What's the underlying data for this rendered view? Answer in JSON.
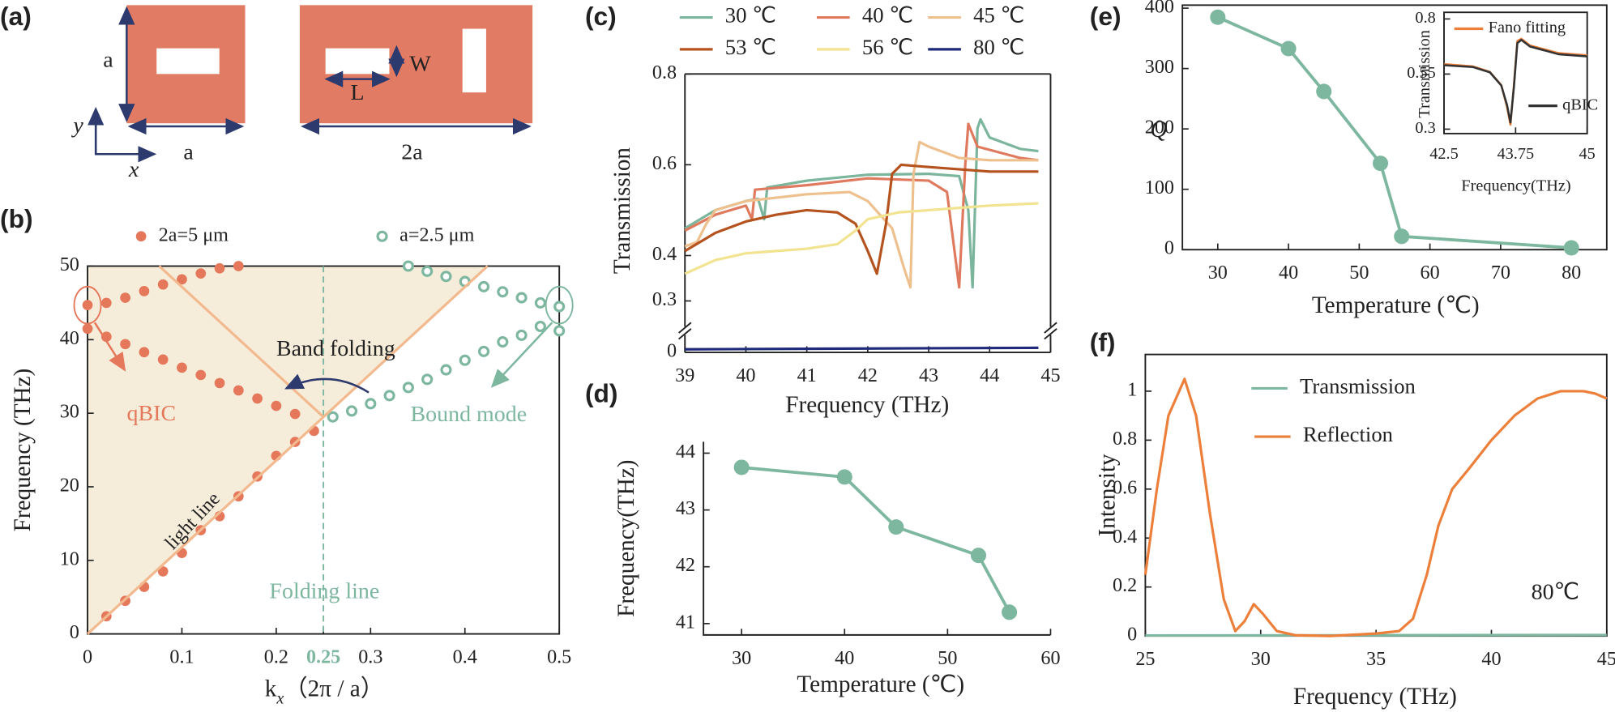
{
  "schematic": {
    "panel": "(a)",
    "labels": {
      "height": "a",
      "width_small": "a",
      "width_large": "2a",
      "slot_width": "W",
      "slot_length": "L",
      "axis_y": "y",
      "axis_x": "x"
    }
  },
  "chart_data": [
    {
      "type": "scatter",
      "panel": "(b)",
      "xlabel": {
        "base": "k",
        "sub": "x",
        "rest": "（2π / a）"
      },
      "ylabel": "Frequency (THz)",
      "xlim": [
        0,
        0.5
      ],
      "xticks": [
        0,
        0.1,
        0.2,
        0.25,
        0.3,
        0.4,
        0.5
      ],
      "ylim": [
        0,
        50
      ],
      "yticks": [
        0,
        10,
        20,
        30,
        40,
        50
      ],
      "folding_line": 0.25,
      "highlight_color": "#7db79f",
      "shade_color": "#f6ecda",
      "annotations": [
        "Band folding",
        "qBIC",
        "Bound mode",
        "light line",
        "Folding line"
      ],
      "series": [
        {
          "name": "2a=5 μm",
          "color": "#e5785a",
          "style": "filled",
          "x": [
            0.02,
            0.04,
            0.06,
            0.08,
            0.1,
            0.12,
            0.14,
            0.16,
            0.18,
            0.2,
            0.22,
            0.24,
            0,
            0.02,
            0.04,
            0.06,
            0.08,
            0.1,
            0.12,
            0.14,
            0.16,
            0.18,
            0.2,
            0.22,
            0,
            0.02,
            0.04,
            0.06,
            0.08,
            0.1,
            0.12,
            0.14,
            0.16
          ],
          "values": [
            2.4,
            4.5,
            6.4,
            8.5,
            11,
            14.1,
            16,
            18.7,
            21.4,
            24.2,
            26.1,
            27.6,
            41.5,
            40.4,
            39.4,
            38.3,
            37.3,
            36.2,
            35.2,
            34.1,
            33.1,
            32,
            31,
            29.9,
            44.7,
            45,
            45.7,
            46.6,
            47.5,
            48.2,
            49,
            49.7,
            50
          ]
        },
        {
          "name": "a=2.5 μm",
          "color": "#7db79f",
          "style": "hollow",
          "x": [
            0.26,
            0.28,
            0.3,
            0.32,
            0.34,
            0.36,
            0.38,
            0.4,
            0.42,
            0.44,
            0.46,
            0.48,
            0.5,
            0.34,
            0.36,
            0.38,
            0.4,
            0.42,
            0.44,
            0.46,
            0.48,
            0.5
          ],
          "values": [
            29.5,
            30.3,
            31.3,
            32.4,
            33.5,
            34.6,
            35.9,
            37.2,
            38.4,
            39.7,
            40.6,
            41.8,
            41.2,
            50,
            49.3,
            48.6,
            47.9,
            47.2,
            46.5,
            45.7,
            45,
            44.5
          ]
        },
        {
          "color": "#f3b98e",
          "style": "line",
          "x": [
            0,
            0.424
          ],
          "values": [
            0,
            50
          ]
        },
        {
          "color": "#f3b98e",
          "style": "line",
          "x": [
            0.076,
            0.25
          ],
          "values": [
            50,
            29.5
          ]
        }
      ]
    },
    {
      "type": "line",
      "panel": "(c)",
      "xlabel": "Frequency (THz)",
      "ylabel": "Transmission",
      "xlim": [
        39,
        45
      ],
      "xticks": [
        39,
        40,
        41,
        42,
        43,
        44,
        45
      ],
      "ylim": [
        0,
        0.8
      ],
      "ybreak": [
        0.01,
        0.25
      ],
      "yticks": [
        0,
        0.3,
        0.4,
        0.6,
        0.8
      ],
      "series": [
        {
          "name": "30 ℃",
          "color": "#7ab59c",
          "x": [
            39,
            39.5,
            40,
            40.2,
            40.3,
            40.35,
            41,
            42,
            43,
            43.5,
            43.65,
            43.72,
            43.8,
            43.85,
            44,
            44.5,
            44.8
          ],
          "values": [
            0.46,
            0.5,
            0.52,
            0.525,
            0.48,
            0.55,
            0.565,
            0.578,
            0.58,
            0.575,
            0.5,
            0.33,
            0.68,
            0.7,
            0.66,
            0.635,
            0.63
          ]
        },
        {
          "name": "40 ℃",
          "color": "#e07a5f",
          "x": [
            39,
            39.5,
            40,
            40.1,
            40.15,
            41,
            42,
            43,
            43.3,
            43.5,
            43.6,
            43.65,
            43.8,
            44.5,
            44.8
          ],
          "values": [
            0.455,
            0.49,
            0.51,
            0.48,
            0.545,
            0.555,
            0.57,
            0.565,
            0.54,
            0.33,
            0.6,
            0.69,
            0.64,
            0.615,
            0.61
          ]
        },
        {
          "name": "45 ℃",
          "color": "#eec08e",
          "x": [
            39,
            39.2,
            39.35,
            39.5,
            40,
            41,
            41.7,
            42,
            42.4,
            42.6,
            42.7,
            42.75,
            42.85,
            43,
            43.5,
            44,
            44.8
          ],
          "values": [
            0.42,
            0.43,
            0.47,
            0.5,
            0.52,
            0.535,
            0.54,
            0.52,
            0.46,
            0.37,
            0.33,
            0.58,
            0.65,
            0.64,
            0.615,
            0.61,
            0.61
          ]
        },
        {
          "name": "53 ℃",
          "color": "#b5531f",
          "x": [
            39,
            39.5,
            40,
            40.5,
            41,
            41.5,
            41.8,
            42,
            42.15,
            42.3,
            42.4,
            42.55,
            43,
            44,
            44.8
          ],
          "values": [
            0.41,
            0.45,
            0.475,
            0.49,
            0.5,
            0.495,
            0.47,
            0.41,
            0.36,
            0.47,
            0.58,
            0.6,
            0.595,
            0.585,
            0.585
          ]
        },
        {
          "name": "56 ℃",
          "color": "#f2e390",
          "x": [
            39,
            39.5,
            40,
            40.5,
            41,
            41.5,
            41.8,
            42,
            42.5,
            43,
            44,
            44.8
          ],
          "values": [
            0.36,
            0.39,
            0.405,
            0.41,
            0.415,
            0.425,
            0.455,
            0.48,
            0.495,
            0.5,
            0.51,
            0.515
          ]
        },
        {
          "name": "80 ℃",
          "color": "#1f2a7a",
          "x": [
            39,
            44.8
          ],
          "values": [
            0.002,
            0.003
          ]
        }
      ]
    },
    {
      "type": "line",
      "panel": "(d)",
      "xlabel": "Temperature (℃)",
      "ylabel": "Frequency(THz)",
      "frame": "axes",
      "xlim": [
        26.3,
        60
      ],
      "xticks": [
        30,
        40,
        50,
        60
      ],
      "ylim": [
        40.8,
        44.2
      ],
      "yticks": [
        41,
        42,
        43,
        44
      ],
      "series": [
        {
          "color": "#7db79f",
          "style": "line-marker",
          "x": [
            30,
            40,
            45,
            53,
            56
          ],
          "values": [
            43.75,
            43.58,
            42.7,
            42.2,
            41.2
          ]
        }
      ]
    },
    {
      "type": "line",
      "panel": "(e)",
      "xlabel": "Temperature (℃)",
      "ylabel": "Q",
      "xlim": [
        25,
        85
      ],
      "xticks": [
        30,
        40,
        50,
        60,
        70,
        80
      ],
      "ylim": [
        0,
        405
      ],
      "yticks": [
        0,
        100,
        200,
        300,
        400
      ],
      "series": [
        {
          "color": "#7db79f",
          "style": "line-marker",
          "x": [
            30,
            40,
            45,
            53,
            56,
            80
          ],
          "values": [
            385,
            333,
            262,
            143,
            22,
            3
          ]
        }
      ]
    },
    {
      "type": "line",
      "xlabel": "Frequency(THz)",
      "ylabel": "Transmission",
      "xlim": [
        42.5,
        45
      ],
      "xticks": [
        42.5,
        43.75,
        45
      ],
      "ylim": [
        0.28,
        0.83
      ],
      "yticks": [
        0.3,
        0.55,
        0.8
      ],
      "series": [
        {
          "name": "Fano fitting",
          "color": "#ec7f3a",
          "x": [
            42.5,
            43,
            43.3,
            43.5,
            43.6,
            43.66,
            43.72,
            43.78,
            43.85,
            44,
            44.5,
            45
          ],
          "values": [
            0.595,
            0.585,
            0.56,
            0.5,
            0.4,
            0.32,
            0.5,
            0.7,
            0.71,
            0.68,
            0.645,
            0.635
          ]
        },
        {
          "name": "qBIC",
          "color": "#333333",
          "x": [
            42.5,
            43,
            43.3,
            43.5,
            43.6,
            43.66,
            43.72,
            43.78,
            43.85,
            44,
            44.5,
            45
          ],
          "values": [
            0.59,
            0.582,
            0.558,
            0.498,
            0.41,
            0.33,
            0.49,
            0.69,
            0.705,
            0.675,
            0.64,
            0.63
          ]
        }
      ]
    },
    {
      "type": "line",
      "panel": "(f)",
      "xlabel": "Frequency (THz)",
      "ylabel": "Intensity",
      "xlim": [
        25,
        45
      ],
      "xticks": [
        25,
        30,
        35,
        40,
        45
      ],
      "ylim": [
        0,
        1.15
      ],
      "yticks": [
        0,
        0.2,
        0.4,
        0.6,
        0.8,
        1.0
      ],
      "annotations": [
        "80℃"
      ],
      "series": [
        {
          "name": "Transmission",
          "color": "#7db79f",
          "x": [
            25,
            35,
            45
          ],
          "values": [
            0.002,
            0.003,
            0.004
          ]
        },
        {
          "name": "Reflection",
          "color": "#ec7f3a",
          "x": [
            25,
            25.5,
            26,
            26.7,
            27.2,
            27.8,
            28.4,
            28.9,
            29.3,
            29.7,
            30.1,
            30.7,
            31.5,
            33,
            35,
            36,
            36.6,
            37.2,
            37.7,
            38.3,
            39,
            40,
            41,
            42,
            43,
            44,
            44.5,
            45
          ],
          "values": [
            0.25,
            0.6,
            0.9,
            1.05,
            0.9,
            0.5,
            0.15,
            0.02,
            0.06,
            0.13,
            0.09,
            0.02,
            0.003,
            0,
            0.01,
            0.02,
            0.07,
            0.25,
            0.45,
            0.6,
            0.68,
            0.8,
            0.9,
            0.97,
            1.0,
            1.0,
            0.99,
            0.97
          ]
        }
      ]
    }
  ]
}
